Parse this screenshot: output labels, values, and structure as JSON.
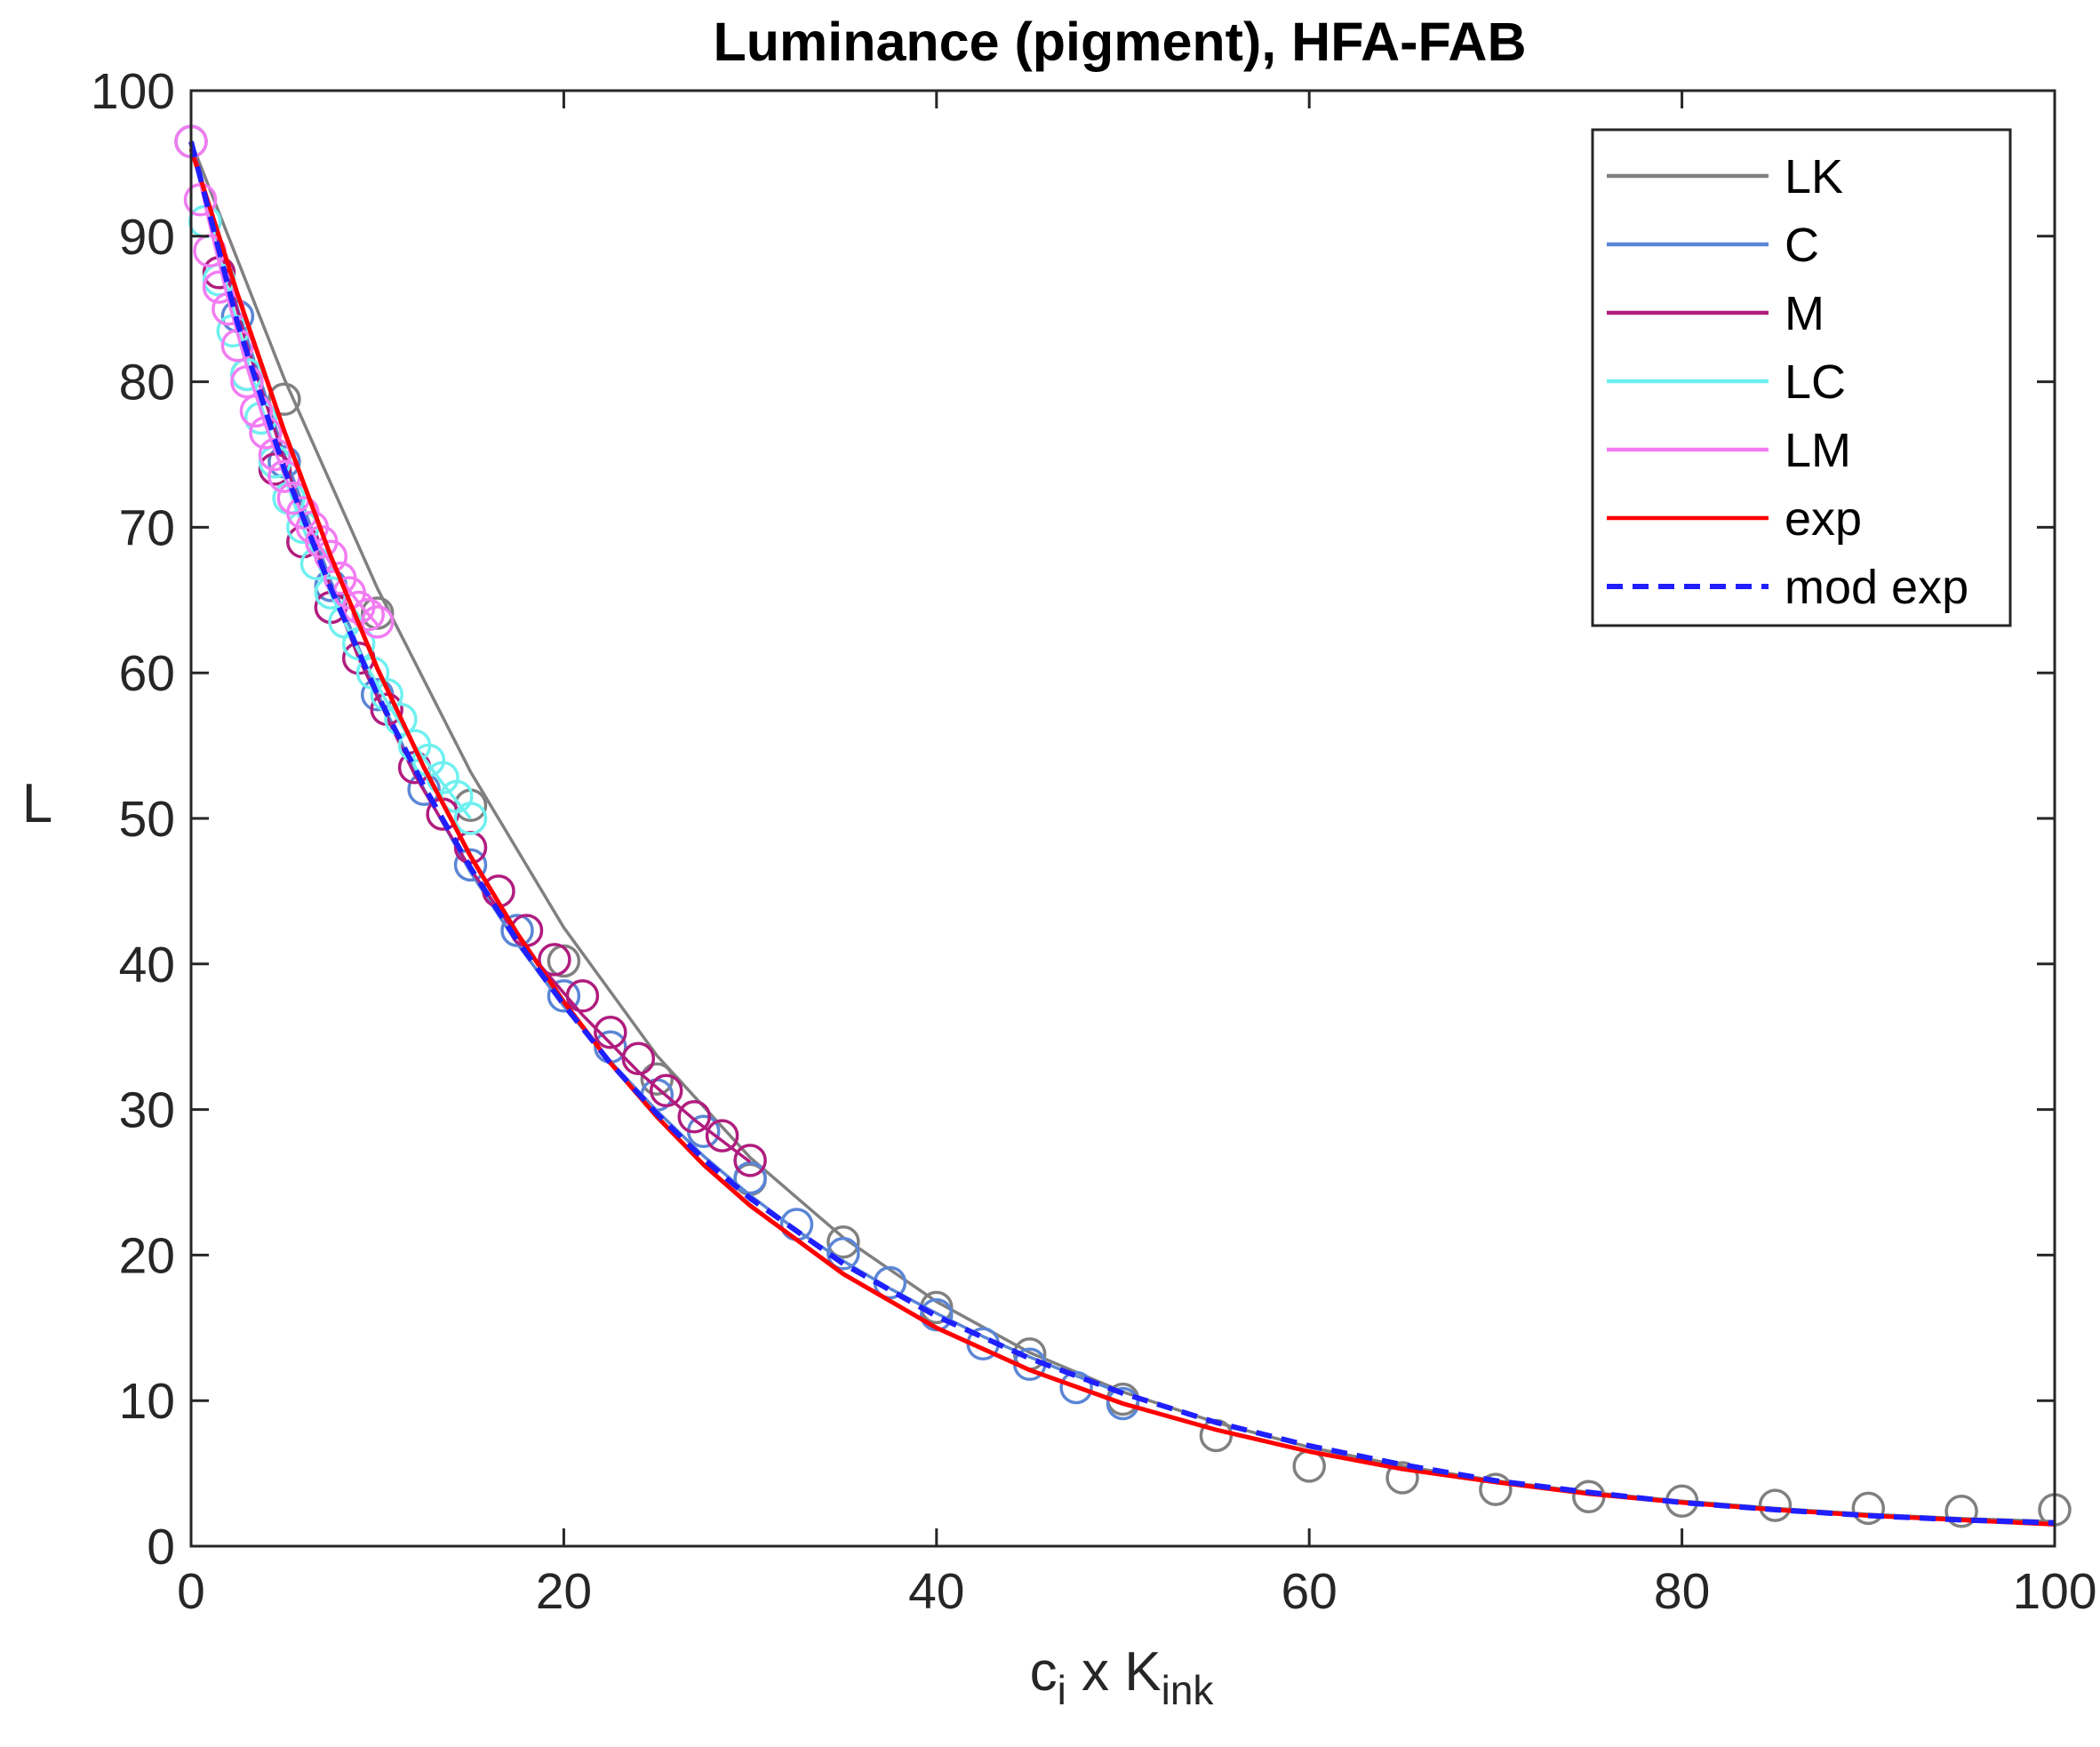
{
  "chart_data": {
    "type": "line",
    "title": "Luminance (pigment), HFA-FAB",
    "xlabel": {
      "main": "c",
      "sub1": "i",
      "mid": " x K",
      "sub2": "ink"
    },
    "ylabel": "L",
    "xlim": [
      0,
      100
    ],
    "ylim": [
      0,
      100
    ],
    "xticks": [
      0,
      20,
      40,
      60,
      80,
      100
    ],
    "yticks": [
      0,
      10,
      20,
      30,
      40,
      50,
      60,
      70,
      80,
      90,
      100
    ],
    "grid": false,
    "box": true,
    "legend_position": "top-right",
    "series": [
      {
        "name": "LK",
        "color": "#808080",
        "style": "solid",
        "marker": "circle",
        "points": [
          [
            0,
            96.5
          ],
          [
            5,
            78.8
          ],
          [
            10,
            64.1
          ],
          [
            15,
            50.9
          ],
          [
            20,
            40.2
          ],
          [
            25,
            32.1
          ],
          [
            30,
            25.2
          ],
          [
            35,
            20.9
          ],
          [
            40,
            16.4
          ],
          [
            45,
            13.2
          ],
          [
            50,
            10.1
          ],
          [
            55,
            7.6
          ],
          [
            60,
            5.5
          ],
          [
            65,
            4.7
          ],
          [
            70,
            3.9
          ],
          [
            75,
            3.4
          ],
          [
            80,
            3.1
          ],
          [
            85,
            2.8
          ],
          [
            90,
            2.6
          ],
          [
            95,
            2.4
          ],
          [
            100,
            2.5
          ]
        ],
        "curve": [
          [
            0,
            96.5
          ],
          [
            5,
            80.2
          ],
          [
            10,
            65.8
          ],
          [
            15,
            53.2
          ],
          [
            20,
            42.5
          ],
          [
            25,
            33.7
          ],
          [
            30,
            26.7
          ],
          [
            35,
            21.2
          ],
          [
            40,
            16.8
          ],
          [
            45,
            13.3
          ],
          [
            50,
            10.6
          ],
          [
            55,
            8.5
          ],
          [
            60,
            6.8
          ],
          [
            65,
            5.5
          ],
          [
            70,
            4.5
          ],
          [
            75,
            3.7
          ],
          [
            80,
            3.1
          ],
          [
            85,
            2.6
          ],
          [
            90,
            2.2
          ],
          [
            95,
            1.9
          ],
          [
            100,
            1.7
          ]
        ]
      },
      {
        "name": "C",
        "color": "#5b86d6",
        "style": "solid",
        "marker": "circle",
        "points": [
          [
            0,
            96.5
          ],
          [
            2.5,
            84.5
          ],
          [
            5,
            74.5
          ],
          [
            7.5,
            66.0
          ],
          [
            10,
            58.5
          ],
          [
            12.5,
            52.0
          ],
          [
            15,
            46.8
          ],
          [
            17.5,
            42.3
          ],
          [
            20,
            37.8
          ],
          [
            22.5,
            34.3
          ],
          [
            25,
            31.0
          ],
          [
            27.5,
            28.5
          ],
          [
            30,
            25.3
          ],
          [
            32.5,
            22.1
          ],
          [
            35,
            20.1
          ],
          [
            37.5,
            18.1
          ],
          [
            40,
            15.9
          ],
          [
            42.5,
            13.9
          ],
          [
            45,
            12.5
          ],
          [
            47.5,
            10.9
          ],
          [
            50,
            9.8
          ]
        ],
        "curve": [
          [
            0,
            96.5
          ],
          [
            2.5,
            85.0
          ],
          [
            5,
            75.0
          ],
          [
            7.5,
            66.3
          ],
          [
            10,
            58.6
          ],
          [
            12.5,
            52.0
          ],
          [
            15,
            46.3
          ],
          [
            17.5,
            41.4
          ],
          [
            20,
            37.1
          ],
          [
            22.5,
            33.3
          ],
          [
            25,
            29.9
          ],
          [
            27.5,
            26.8
          ],
          [
            30,
            24.1
          ],
          [
            32.5,
            21.7
          ],
          [
            35,
            19.6
          ],
          [
            37.5,
            17.7
          ],
          [
            40,
            16.0
          ],
          [
            42.5,
            14.4
          ],
          [
            45,
            13.0
          ],
          [
            47.5,
            11.7
          ],
          [
            50,
            10.5
          ]
        ]
      },
      {
        "name": "M",
        "color": "#b01c7e",
        "style": "solid",
        "marker": "circle",
        "points": [
          [
            0,
            96.5
          ],
          [
            1.5,
            87.5
          ],
          [
            3,
            80.5
          ],
          [
            4.5,
            74.0
          ],
          [
            6,
            69.0
          ],
          [
            7.5,
            64.5
          ],
          [
            9,
            61.0
          ],
          [
            10.5,
            57.5
          ],
          [
            12,
            53.5
          ],
          [
            13.5,
            50.3
          ],
          [
            15,
            48.0
          ],
          [
            16.5,
            45.0
          ],
          [
            18,
            42.3
          ],
          [
            19.5,
            40.3
          ],
          [
            21,
            37.8
          ],
          [
            22.5,
            35.3
          ],
          [
            24,
            33.5
          ],
          [
            25.5,
            31.3
          ],
          [
            27,
            29.5
          ],
          [
            28.5,
            28.2
          ],
          [
            30,
            26.5
          ]
        ],
        "curve": [
          [
            0,
            96.5
          ],
          [
            3,
            82.5
          ],
          [
            6,
            70.8
          ],
          [
            9,
            61.0
          ],
          [
            12,
            53.0
          ],
          [
            15,
            46.5
          ],
          [
            18,
            41.0
          ],
          [
            21,
            36.5
          ],
          [
            24,
            32.6
          ],
          [
            27,
            29.3
          ],
          [
            30,
            26.4
          ]
        ]
      },
      {
        "name": "LC",
        "color": "#6ff0f0",
        "style": "solid",
        "marker": "circle",
        "points": [
          [
            0,
            96.5
          ],
          [
            0.75,
            91.0
          ],
          [
            1.5,
            87.0
          ],
          [
            2.25,
            83.5
          ],
          [
            3,
            80.5
          ],
          [
            3.75,
            77.5
          ],
          [
            4.5,
            74.5
          ],
          [
            5.25,
            72.0
          ],
          [
            6,
            70.0
          ],
          [
            6.75,
            67.5
          ],
          [
            7.5,
            65.5
          ],
          [
            8.25,
            63.5
          ],
          [
            9,
            62.0
          ],
          [
            9.75,
            60.0
          ],
          [
            10.5,
            58.5
          ],
          [
            11.25,
            56.8
          ],
          [
            12,
            55.0
          ],
          [
            12.75,
            54.0
          ],
          [
            13.5,
            52.8
          ],
          [
            14.25,
            51.5
          ],
          [
            15,
            50.0
          ]
        ],
        "curve": [
          [
            0,
            96.5
          ],
          [
            1.5,
            88.5
          ],
          [
            3,
            81.5
          ],
          [
            4.5,
            75.3
          ],
          [
            6,
            70.0
          ],
          [
            7.5,
            65.4
          ],
          [
            9,
            61.5
          ],
          [
            10.5,
            58.0
          ],
          [
            12,
            55.0
          ],
          [
            13.5,
            52.4
          ],
          [
            15,
            50.0
          ]
        ]
      },
      {
        "name": "LM",
        "color": "#f27cf2",
        "style": "solid",
        "marker": "circle",
        "points": [
          [
            0,
            96.5
          ],
          [
            0.5,
            92.5
          ],
          [
            1,
            89.0
          ],
          [
            1.5,
            86.5
          ],
          [
            2,
            85.0
          ],
          [
            2.5,
            82.5
          ],
          [
            3,
            80.0
          ],
          [
            3.5,
            78.0
          ],
          [
            4,
            76.5
          ],
          [
            4.5,
            75.0
          ],
          [
            5,
            73.5
          ],
          [
            5.5,
            72.0
          ],
          [
            6,
            71.0
          ],
          [
            6.5,
            70.0
          ],
          [
            7,
            69.0
          ],
          [
            7.5,
            68.0
          ],
          [
            8,
            66.5
          ],
          [
            8.5,
            65.5
          ],
          [
            9,
            64.5
          ],
          [
            9.5,
            64.0
          ],
          [
            10,
            63.5
          ]
        ],
        "curve": [
          [
            0,
            96.5
          ],
          [
            1,
            90.8
          ],
          [
            2,
            85.6
          ],
          [
            3,
            81.0
          ],
          [
            4,
            77.0
          ],
          [
            5,
            73.6
          ],
          [
            6,
            70.8
          ],
          [
            7,
            68.5
          ],
          [
            8,
            66.5
          ],
          [
            9,
            64.8
          ],
          [
            10,
            63.3
          ]
        ]
      },
      {
        "name": "exp",
        "color": "#ff0000",
        "style": "solid",
        "marker": "none",
        "points": [],
        "curve": [
          [
            0,
            96.0
          ],
          [
            2.5,
            86.0
          ],
          [
            5,
            76.6
          ],
          [
            7.5,
            68.0
          ],
          [
            10,
            60.3
          ],
          [
            12.5,
            53.5
          ],
          [
            15,
            47.4
          ],
          [
            17.5,
            42.1
          ],
          [
            20,
            37.4
          ],
          [
            22.5,
            33.2
          ],
          [
            25,
            29.5
          ],
          [
            27.5,
            26.2
          ],
          [
            30,
            23.4
          ],
          [
            35,
            18.7
          ],
          [
            40,
            15.0
          ],
          [
            45,
            12.1
          ],
          [
            50,
            9.8
          ],
          [
            55,
            8.0
          ],
          [
            60,
            6.5
          ],
          [
            65,
            5.3
          ],
          [
            70,
            4.4
          ],
          [
            75,
            3.6
          ],
          [
            80,
            3.0
          ],
          [
            85,
            2.5
          ],
          [
            90,
            2.1
          ],
          [
            95,
            1.8
          ],
          [
            100,
            1.5
          ]
        ]
      },
      {
        "name": "mod exp",
        "color": "#1f1fff",
        "style": "dashed",
        "marker": "none",
        "points": [],
        "curve": [
          [
            0,
            96.5
          ],
          [
            2.5,
            84.0
          ],
          [
            5,
            74.0
          ],
          [
            7.5,
            65.8
          ],
          [
            10,
            58.5
          ],
          [
            12.5,
            52.2
          ],
          [
            15,
            46.6
          ],
          [
            17.5,
            41.6
          ],
          [
            20,
            37.2
          ],
          [
            22.5,
            33.2
          ],
          [
            25,
            29.7
          ],
          [
            27.5,
            26.6
          ],
          [
            30,
            23.9
          ],
          [
            35,
            19.4
          ],
          [
            40,
            15.8
          ],
          [
            45,
            12.9
          ],
          [
            50,
            10.5
          ],
          [
            55,
            8.5
          ],
          [
            60,
            6.9
          ],
          [
            65,
            5.6
          ],
          [
            70,
            4.5
          ],
          [
            75,
            3.7
          ],
          [
            80,
            3.0
          ],
          [
            85,
            2.5
          ],
          [
            90,
            2.1
          ],
          [
            95,
            1.8
          ],
          [
            100,
            1.6
          ]
        ]
      }
    ]
  }
}
